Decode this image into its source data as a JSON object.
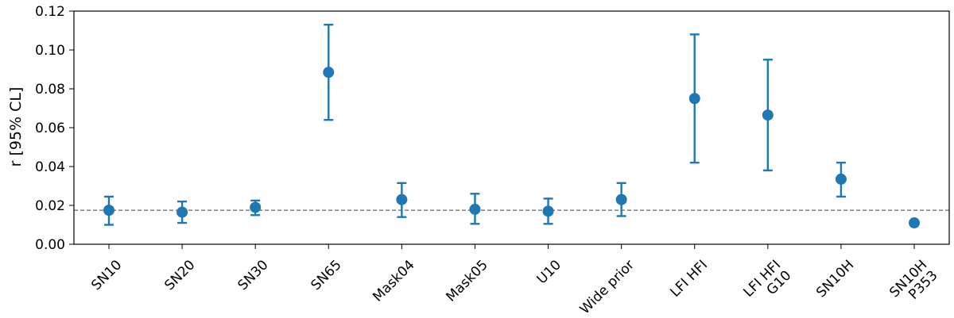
{
  "chart_data": {
    "type": "scatter",
    "title": "",
    "xlabel": "",
    "ylabel": "r [95% CL]",
    "ylim": [
      0.0,
      0.12
    ],
    "yticks": [
      "0.00",
      "0.02",
      "0.04",
      "0.06",
      "0.08",
      "0.10",
      "0.12"
    ],
    "grid": false,
    "color": "#1f77b4",
    "reference_line": {
      "y": 0.0175,
      "style": "dashed",
      "color": "#808080"
    },
    "categories": [
      "SN10",
      "SN20",
      "SN30",
      "SN65",
      "Mask04",
      "Mask05",
      "U10",
      "Wide prior",
      "LFI HFI",
      "LFI HFI\nG10",
      "SN10H",
      "SN10H\nP353"
    ],
    "series": [
      {
        "values": [
          0.0175,
          0.0165,
          0.019,
          0.0885,
          0.023,
          0.018,
          0.017,
          0.023,
          0.075,
          0.0665,
          0.0335,
          0.011
        ],
        "err_low": [
          0.01,
          0.011,
          0.015,
          0.064,
          0.014,
          0.0105,
          0.0105,
          0.0145,
          0.042,
          0.038,
          0.0245,
          0.011
        ],
        "err_high": [
          0.0245,
          0.022,
          0.0225,
          0.113,
          0.0315,
          0.026,
          0.0235,
          0.0315,
          0.108,
          0.095,
          0.042,
          0.011
        ]
      }
    ]
  }
}
